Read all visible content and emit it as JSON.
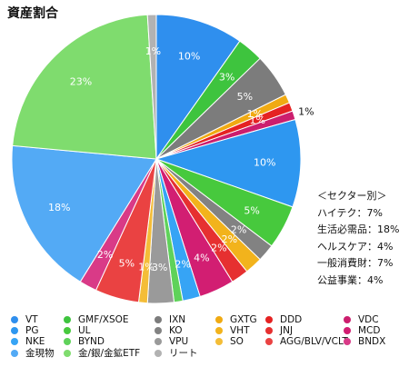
{
  "title": "資産割合",
  "chart_data": {
    "type": "pie",
    "title": "資産割合",
    "slices": [
      {
        "name": "VT",
        "value": 10,
        "label": "10%",
        "color": "#2f8fee"
      },
      {
        "name": "GMF/XSOE",
        "value": 3,
        "label": "3%",
        "color": "#3ec43e"
      },
      {
        "name": "IXN",
        "value": 5,
        "label": "5%",
        "color": "#7c7c7c"
      },
      {
        "name": "GXTG",
        "value": 1,
        "label": "1%",
        "color": "#f0aa12"
      },
      {
        "name": "DDD",
        "value": 1,
        "label": "1%",
        "color": "#e52222"
      },
      {
        "name": "VDC",
        "value": 1,
        "label": "1%",
        "color": "#cc1e6e"
      },
      {
        "name": "PG",
        "value": 10,
        "label": "10%",
        "color": "#2e97f0"
      },
      {
        "name": "UL",
        "value": 5,
        "label": "5%",
        "color": "#47c93d"
      },
      {
        "name": "KO",
        "value": 2,
        "label": "2%",
        "color": "#828282"
      },
      {
        "name": "VHT",
        "value": 2,
        "label": "2%",
        "color": "#f2b31c"
      },
      {
        "name": "JNJ",
        "value": 2,
        "label": "2%",
        "color": "#e63030"
      },
      {
        "name": "MCD",
        "value": 4,
        "label": "4%",
        "color": "#d21e72"
      },
      {
        "name": "NKE",
        "value": 2,
        "label": "2%",
        "color": "#36a4f5"
      },
      {
        "name": "BYND",
        "value": 1,
        "label": "",
        "color": "#5fd25a"
      },
      {
        "name": "VPU",
        "value": 3,
        "label": "3%",
        "color": "#9a9a9a"
      },
      {
        "name": "SO",
        "value": 1,
        "label": "1%",
        "color": "#f4bd37"
      },
      {
        "name": "AGG/BLV/VCLT",
        "value": 5,
        "label": "5%",
        "color": "#ea4242"
      },
      {
        "name": "BNDX",
        "value": 2,
        "label": "2%",
        "color": "#d93a87"
      },
      {
        "name": "金現物",
        "value": 18,
        "label": "18%",
        "color": "#53aaf5"
      },
      {
        "name": "金/銀/金鉱ETF",
        "value": 23,
        "label": "23%",
        "color": "#7fdc6e"
      },
      {
        "name": "リート",
        "value": 1,
        "label": "1%",
        "color": "#b2b2b2"
      }
    ]
  },
  "sector_note": {
    "heading": "＜セクター別＞",
    "lines": [
      "ハイテク：7%",
      "生活必需品：18%",
      "ヘルスケア：4%",
      "一般消費財：7%",
      "公益事業：4%"
    ]
  }
}
